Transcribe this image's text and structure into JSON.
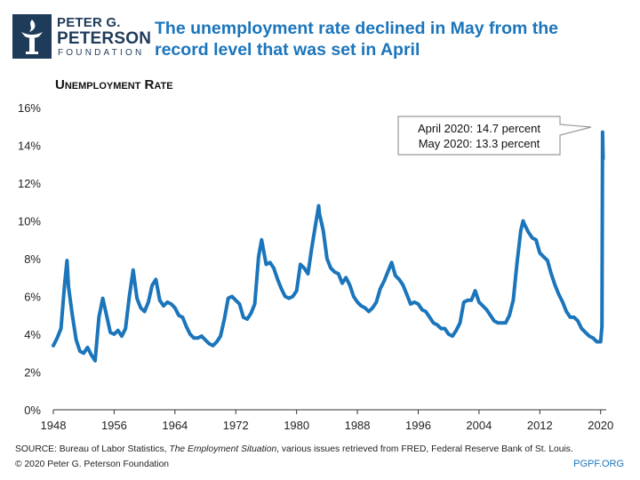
{
  "brand": {
    "name_line1": "PETER G.",
    "name_line2": "PETERSON",
    "name_line3": "FOUNDATION",
    "logo_icon": "torch-icon",
    "color": "#1f3b5a"
  },
  "title": "The unemployment rate declined in May from the record level that was set in April",
  "title_color": "#1b75bb",
  "footer": {
    "source_prefix": "SOURCE: Bureau of Labor Statistics, ",
    "source_italic": "The Employment Situation",
    "source_suffix": ", various issues retrieved from FRED, Federal Reserve Bank of St. Louis.",
    "copyright": "© 2020 Peter G. Peterson Foundation",
    "url": "PGPF.ORG"
  },
  "chart_data": {
    "type": "line",
    "title": "Unemployment Rate",
    "xlabel": "",
    "ylabel": "",
    "xlim": [
      1948,
      2020.5
    ],
    "ylim": [
      0,
      16
    ],
    "xticks": [
      1948,
      1956,
      1964,
      1972,
      1980,
      1988,
      1996,
      2004,
      2012,
      2020
    ],
    "yticks": [
      0,
      2,
      4,
      6,
      8,
      10,
      12,
      14,
      16
    ],
    "ytick_format": "percent",
    "grid": false,
    "legend": "none",
    "line_color": "#1b75bb",
    "annotation": {
      "lines": [
        "April 2020: 14.7 percent",
        "May 2020: 13.3 percent"
      ],
      "placement": "top-right"
    },
    "series": [
      {
        "points": [
          [
            1948.0,
            3.4
          ],
          [
            1948.5,
            3.8
          ],
          [
            1949.0,
            4.3
          ],
          [
            1949.5,
            6.7
          ],
          [
            1949.8,
            7.9
          ],
          [
            1950.0,
            6.5
          ],
          [
            1950.5,
            5.0
          ],
          [
            1951.0,
            3.7
          ],
          [
            1951.5,
            3.1
          ],
          [
            1952.0,
            3.0
          ],
          [
            1952.5,
            3.3
          ],
          [
            1953.0,
            2.9
          ],
          [
            1953.5,
            2.6
          ],
          [
            1954.0,
            4.9
          ],
          [
            1954.5,
            5.9
          ],
          [
            1955.0,
            5.0
          ],
          [
            1955.5,
            4.1
          ],
          [
            1956.0,
            4.0
          ],
          [
            1956.5,
            4.2
          ],
          [
            1957.0,
            3.9
          ],
          [
            1957.5,
            4.3
          ],
          [
            1958.0,
            6.0
          ],
          [
            1958.5,
            7.4
          ],
          [
            1959.0,
            5.9
          ],
          [
            1959.5,
            5.4
          ],
          [
            1960.0,
            5.2
          ],
          [
            1960.5,
            5.7
          ],
          [
            1961.0,
            6.6
          ],
          [
            1961.5,
            6.9
          ],
          [
            1962.0,
            5.8
          ],
          [
            1962.5,
            5.5
          ],
          [
            1963.0,
            5.7
          ],
          [
            1963.5,
            5.6
          ],
          [
            1964.0,
            5.4
          ],
          [
            1964.5,
            5.0
          ],
          [
            1965.0,
            4.9
          ],
          [
            1965.5,
            4.4
          ],
          [
            1966.0,
            4.0
          ],
          [
            1966.5,
            3.8
          ],
          [
            1967.0,
            3.8
          ],
          [
            1967.5,
            3.9
          ],
          [
            1968.0,
            3.7
          ],
          [
            1968.5,
            3.5
          ],
          [
            1969.0,
            3.4
          ],
          [
            1969.5,
            3.6
          ],
          [
            1970.0,
            3.9
          ],
          [
            1970.5,
            4.8
          ],
          [
            1971.0,
            5.9
          ],
          [
            1971.5,
            6.0
          ],
          [
            1972.0,
            5.8
          ],
          [
            1972.5,
            5.6
          ],
          [
            1973.0,
            4.9
          ],
          [
            1973.5,
            4.8
          ],
          [
            1974.0,
            5.1
          ],
          [
            1974.5,
            5.6
          ],
          [
            1975.0,
            8.1
          ],
          [
            1975.4,
            9.0
          ],
          [
            1976.0,
            7.7
          ],
          [
            1976.5,
            7.8
          ],
          [
            1977.0,
            7.5
          ],
          [
            1977.5,
            6.9
          ],
          [
            1978.0,
            6.4
          ],
          [
            1978.5,
            6.0
          ],
          [
            1979.0,
            5.9
          ],
          [
            1979.5,
            6.0
          ],
          [
            1980.0,
            6.3
          ],
          [
            1980.5,
            7.7
          ],
          [
            1981.0,
            7.5
          ],
          [
            1981.5,
            7.2
          ],
          [
            1982.0,
            8.6
          ],
          [
            1982.5,
            9.8
          ],
          [
            1982.9,
            10.8
          ],
          [
            1983.0,
            10.4
          ],
          [
            1983.5,
            9.5
          ],
          [
            1984.0,
            8.0
          ],
          [
            1984.5,
            7.5
          ],
          [
            1985.0,
            7.3
          ],
          [
            1985.5,
            7.2
          ],
          [
            1986.0,
            6.7
          ],
          [
            1986.5,
            7.0
          ],
          [
            1987.0,
            6.6
          ],
          [
            1987.5,
            6.0
          ],
          [
            1988.0,
            5.7
          ],
          [
            1988.5,
            5.5
          ],
          [
            1989.0,
            5.4
          ],
          [
            1989.5,
            5.2
          ],
          [
            1990.0,
            5.4
          ],
          [
            1990.5,
            5.7
          ],
          [
            1991.0,
            6.4
          ],
          [
            1991.5,
            6.8
          ],
          [
            1992.0,
            7.3
          ],
          [
            1992.5,
            7.8
          ],
          [
            1993.0,
            7.1
          ],
          [
            1993.5,
            6.9
          ],
          [
            1994.0,
            6.6
          ],
          [
            1994.5,
            6.1
          ],
          [
            1995.0,
            5.6
          ],
          [
            1995.5,
            5.7
          ],
          [
            1996.0,
            5.6
          ],
          [
            1996.5,
            5.3
          ],
          [
            1997.0,
            5.2
          ],
          [
            1997.5,
            4.9
          ],
          [
            1998.0,
            4.6
          ],
          [
            1998.5,
            4.5
          ],
          [
            1999.0,
            4.3
          ],
          [
            1999.5,
            4.3
          ],
          [
            2000.0,
            4.0
          ],
          [
            2000.5,
            3.9
          ],
          [
            2001.0,
            4.2
          ],
          [
            2001.5,
            4.6
          ],
          [
            2002.0,
            5.7
          ],
          [
            2002.5,
            5.8
          ],
          [
            2003.0,
            5.8
          ],
          [
            2003.5,
            6.3
          ],
          [
            2004.0,
            5.7
          ],
          [
            2004.5,
            5.5
          ],
          [
            2005.0,
            5.3
          ],
          [
            2005.5,
            5.0
          ],
          [
            2006.0,
            4.7
          ],
          [
            2006.5,
            4.6
          ],
          [
            2007.0,
            4.6
          ],
          [
            2007.5,
            4.6
          ],
          [
            2008.0,
            5.0
          ],
          [
            2008.5,
            5.8
          ],
          [
            2009.0,
            7.8
          ],
          [
            2009.5,
            9.5
          ],
          [
            2009.8,
            10.0
          ],
          [
            2010.0,
            9.8
          ],
          [
            2010.5,
            9.4
          ],
          [
            2011.0,
            9.1
          ],
          [
            2011.5,
            9.0
          ],
          [
            2012.0,
            8.3
          ],
          [
            2012.5,
            8.1
          ],
          [
            2013.0,
            7.9
          ],
          [
            2013.5,
            7.2
          ],
          [
            2014.0,
            6.6
          ],
          [
            2014.5,
            6.1
          ],
          [
            2015.0,
            5.7
          ],
          [
            2015.5,
            5.2
          ],
          [
            2016.0,
            4.9
          ],
          [
            2016.5,
            4.9
          ],
          [
            2017.0,
            4.7
          ],
          [
            2017.5,
            4.3
          ],
          [
            2018.0,
            4.1
          ],
          [
            2018.5,
            3.9
          ],
          [
            2019.0,
            3.8
          ],
          [
            2019.5,
            3.6
          ],
          [
            2020.0,
            3.6
          ],
          [
            2020.17,
            4.4
          ],
          [
            2020.25,
            14.7
          ],
          [
            2020.33,
            13.3
          ]
        ]
      }
    ]
  }
}
